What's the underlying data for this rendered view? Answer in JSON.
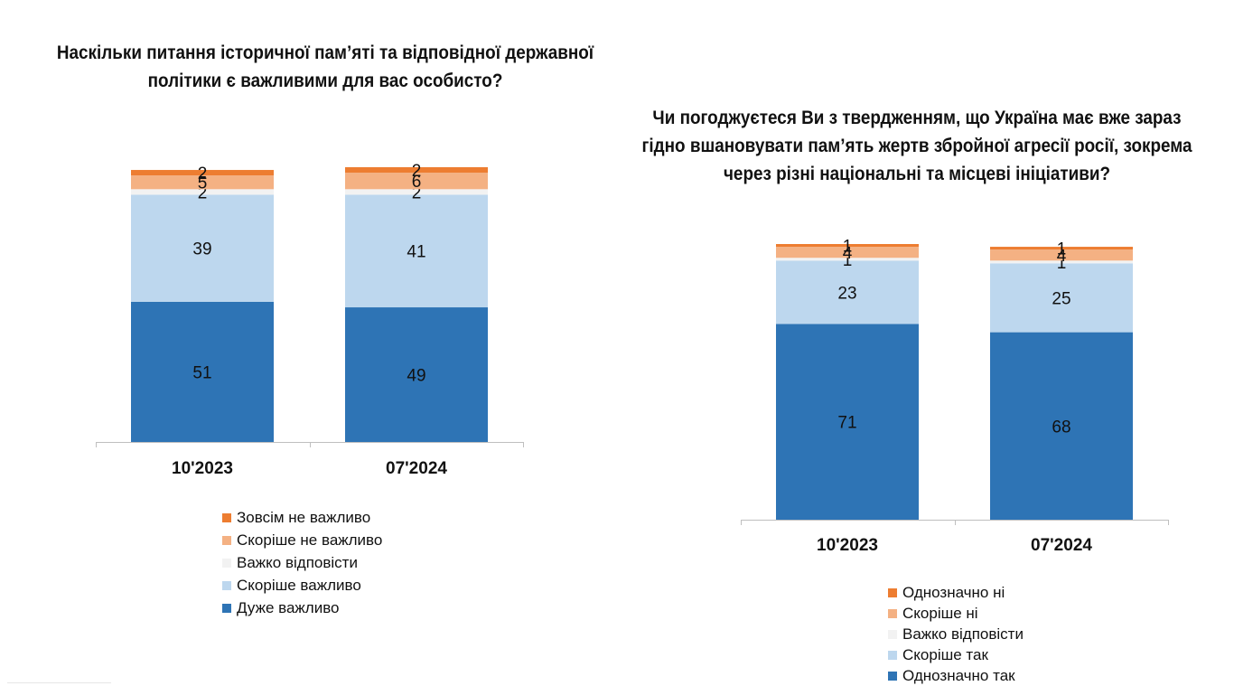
{
  "chart_data": [
    {
      "type": "bar",
      "stacked": true,
      "title": "Наскільки питання історичної пам’яті та відповідної державної політики є важливими для вас особисто?",
      "categories": [
        "10'2023",
        "07'2024"
      ],
      "ylim": [
        0,
        100
      ],
      "series": [
        {
          "name": "Дуже важливо",
          "color": "#2e74b5",
          "values": [
            51,
            49
          ]
        },
        {
          "name": "Скоріше важливо",
          "color": "#bdd7ee",
          "values": [
            39,
            41
          ]
        },
        {
          "name": "Важко відповісти",
          "color": "#f2f2f2",
          "values": [
            2,
            2
          ]
        },
        {
          "name": "Скоріше не важливо",
          "color": "#f4b183",
          "values": [
            5,
            6
          ]
        },
        {
          "name": "Зовсім не важливо",
          "color": "#ed7d31",
          "values": [
            2,
            2
          ]
        }
      ]
    },
    {
      "type": "bar",
      "stacked": true,
      "title": "Чи погоджуєтеся Ви з твердженням, що Україна має вже зараз гідно вшановувати пам’ять жертв збройної агресії росії, зокрема через різні національні та місцеві ініціативи?",
      "categories": [
        "10'2023",
        "07'2024"
      ],
      "ylim": [
        0,
        100
      ],
      "series": [
        {
          "name": "Однозначно так",
          "color": "#2e74b5",
          "values": [
            71,
            68
          ]
        },
        {
          "name": "Скоріше так",
          "color": "#bdd7ee",
          "values": [
            23,
            25
          ]
        },
        {
          "name": "Важко відповісти",
          "color": "#f2f2f2",
          "values": [
            1,
            1
          ]
        },
        {
          "name": "Скоріше ні",
          "color": "#f4b183",
          "values": [
            4,
            4
          ]
        },
        {
          "name": "Однозначно ні",
          "color": "#ed7d31",
          "values": [
            1,
            1
          ]
        }
      ]
    }
  ]
}
